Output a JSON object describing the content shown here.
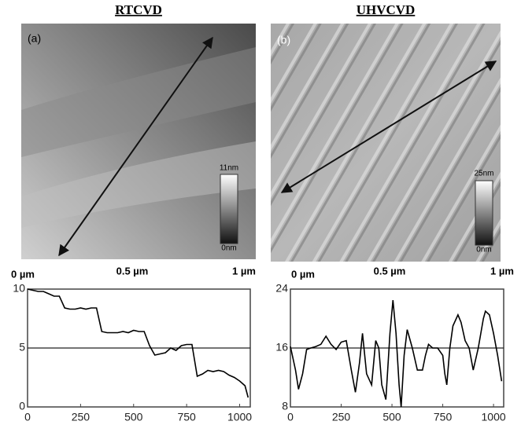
{
  "chart_data": [
    {
      "type": "line",
      "title": "RTCVD",
      "image_label": "(a)",
      "colorbar_labels": [
        "11nm",
        "0nm"
      ],
      "scan_labels": [
        "0 µm",
        "0.5 µm",
        "1 µm"
      ],
      "x": [
        0,
        25,
        50,
        75,
        100,
        125,
        150,
        175,
        200,
        225,
        250,
        275,
        300,
        325,
        350,
        375,
        400,
        425,
        450,
        475,
        500,
        525,
        550,
        575,
        600,
        625,
        650,
        675,
        700,
        725,
        750,
        775,
        800,
        825,
        850,
        875,
        900,
        925,
        950,
        975,
        1000,
        1025,
        1040
      ],
      "values": [
        10,
        9.9,
        9.8,
        9.8,
        9.6,
        9.4,
        9.4,
        8.4,
        8.3,
        8.3,
        8.4,
        8.3,
        8.4,
        8.4,
        6.4,
        6.3,
        6.3,
        6.3,
        6.4,
        6.3,
        6.5,
        6.4,
        6.4,
        5.2,
        4.4,
        4.5,
        4.6,
        5.0,
        4.8,
        5.2,
        5.3,
        5.3,
        2.6,
        2.8,
        3.1,
        3.0,
        3.1,
        3.0,
        2.7,
        2.5,
        2.2,
        1.8,
        0.8
      ],
      "color": "#000000",
      "xlim": [
        0,
        1050
      ],
      "ylim": [
        0,
        10
      ],
      "xticks": [
        0,
        250,
        500,
        750,
        1000
      ],
      "yticks": [
        0,
        5,
        10
      ],
      "hline": 5
    },
    {
      "type": "line",
      "title": "UHVCVD",
      "image_label": "(b)",
      "colorbar_labels": [
        "25nm",
        "0nm"
      ],
      "scan_labels": [
        "0 µm",
        "0.5 µm",
        "1 µm"
      ],
      "x": [
        0,
        25,
        40,
        60,
        80,
        100,
        125,
        150,
        175,
        200,
        225,
        250,
        275,
        300,
        320,
        340,
        355,
        375,
        400,
        420,
        435,
        450,
        470,
        490,
        505,
        520,
        535,
        545,
        560,
        575,
        600,
        625,
        650,
        665,
        680,
        700,
        725,
        750,
        760,
        770,
        785,
        800,
        825,
        840,
        860,
        880,
        900,
        925,
        950,
        960,
        980,
        1000,
        1020,
        1040
      ],
      "values": [
        16.2,
        13,
        10.4,
        12.5,
        15.8,
        16,
        16.2,
        16.5,
        17.6,
        16.5,
        15.8,
        16.8,
        17,
        13,
        10,
        14,
        18,
        12.5,
        11,
        17,
        16,
        11,
        9,
        18,
        22.5,
        18,
        11,
        8,
        15,
        18.5,
        16,
        13,
        13,
        15,
        16.5,
        16,
        16,
        15,
        12.5,
        11,
        16,
        19,
        20.5,
        19.5,
        17,
        16,
        13,
        16,
        20,
        21,
        20.5,
        18,
        15,
        11.5
      ],
      "color": "#000000",
      "xlim": [
        0,
        1050
      ],
      "ylim": [
        8,
        24
      ],
      "xticks": [
        0,
        250,
        500,
        750,
        1000
      ],
      "yticks": [
        8,
        16,
        24
      ],
      "hline": 16
    }
  ]
}
